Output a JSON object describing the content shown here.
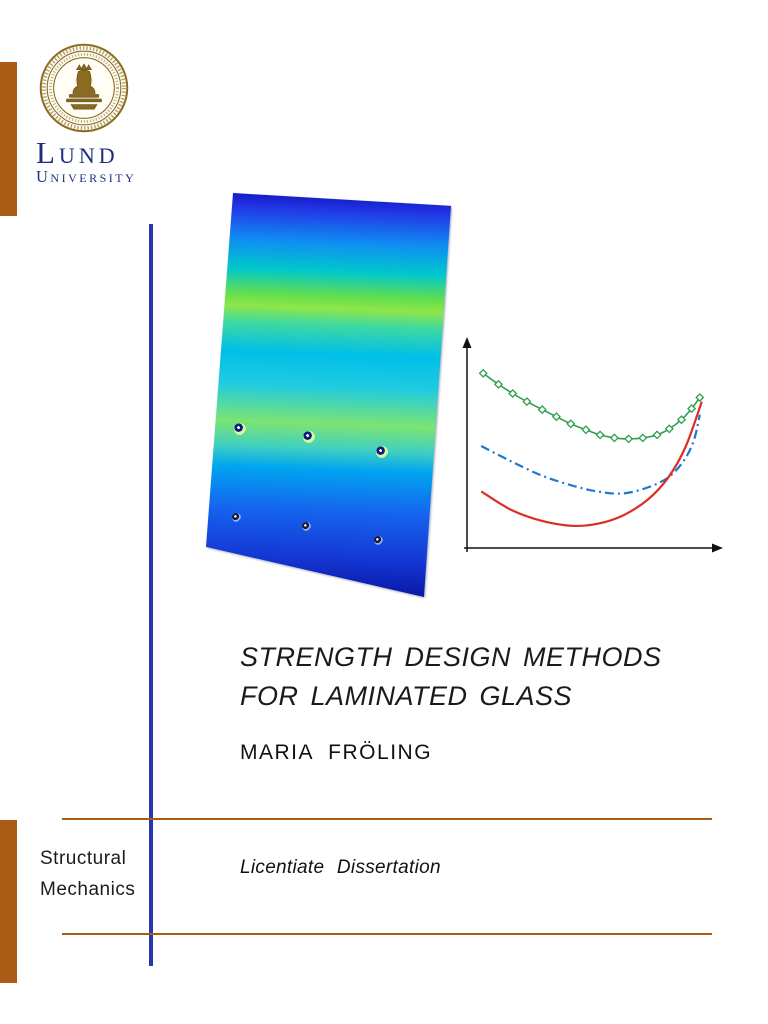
{
  "branding": {
    "seal_name": "lund-university-seal",
    "wordmark_line1": "Lund",
    "wordmark_line2": "University"
  },
  "cover": {
    "title_line1": "STRENGTH DESIGN METHODS",
    "title_line2": "FOR LAMINATED GLASS",
    "author": "MARIA FRÖLING",
    "dissertation_type": "Licentiate Dissertation",
    "department_line1": "Structural",
    "department_line2": "Mechanics"
  },
  "colors": {
    "accent_brown": "#AA5C16",
    "accent_blue": "#2836B0",
    "wordmark_blue": "#1B2F7E",
    "seal_bronze": "#8A6B1F",
    "title_text": "#1A1A1A",
    "chart_green": "#2E9E4F",
    "chart_blue": "#1F77D0",
    "chart_red": "#D93025"
  },
  "figures": {
    "fem_plate": "fem-stress-contour-of-laminated-glass-pane-with-bolt-fixings",
    "chart": "comparison-curves-plot"
  },
  "chart_data": {
    "type": "line",
    "title": "",
    "xlabel": "",
    "ylabel": "",
    "xlim": [
      0,
      10
    ],
    "ylim": [
      0,
      10
    ],
    "grid": false,
    "legend": "none",
    "axes_style": "black arrows, no tick labels",
    "series": [
      {
        "name": "green-diamond",
        "color": "#2E9E4F",
        "style": "solid",
        "marker": "diamond",
        "x": [
          0.54,
          1.17,
          1.75,
          2.33,
          2.96,
          3.54,
          4.13,
          4.75,
          5.33,
          5.92,
          6.5,
          7.08,
          7.67,
          8.17,
          8.67,
          9.08,
          9.42
        ],
        "y": [
          8.65,
          8.1,
          7.65,
          7.25,
          6.85,
          6.5,
          6.15,
          5.85,
          5.6,
          5.45,
          5.4,
          5.45,
          5.6,
          5.9,
          6.35,
          6.9,
          7.45
        ]
      },
      {
        "name": "blue-dash-dot",
        "color": "#1F77D0",
        "style": "dash-dot",
        "marker": "none",
        "x": [
          0.46,
          1.67,
          2.92,
          4.17,
          5.21,
          6.25,
          7.29,
          8.13,
          8.75,
          9.17,
          9.42
        ],
        "y": [
          5.05,
          4.3,
          3.6,
          3.1,
          2.8,
          2.7,
          3.0,
          3.5,
          4.3,
          5.3,
          6.6
        ]
      },
      {
        "name": "red-solid",
        "color": "#D93025",
        "style": "solid",
        "marker": "none",
        "x": [
          0.46,
          1.67,
          2.92,
          4.17,
          5.21,
          6.25,
          7.29,
          8.13,
          8.83,
          9.5
        ],
        "y": [
          2.8,
          1.9,
          1.35,
          1.1,
          1.2,
          1.6,
          2.4,
          3.5,
          5.0,
          7.25
        ]
      }
    ]
  }
}
